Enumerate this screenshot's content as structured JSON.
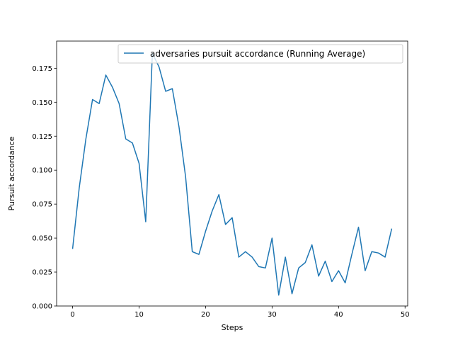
{
  "chart_data": {
    "type": "line",
    "title": "",
    "xlabel": "Steps",
    "ylabel": "Pursuit accordance",
    "xlim": [
      -2.4,
      50.4
    ],
    "ylim": [
      0.0,
      0.195
    ],
    "x_ticks": [
      0,
      10,
      20,
      30,
      40,
      50
    ],
    "y_ticks": [
      0.0,
      0.025,
      0.05,
      0.075,
      0.1,
      0.125,
      0.15,
      0.175
    ],
    "y_tick_labels": [
      "0.000",
      "0.025",
      "0.050",
      "0.075",
      "0.100",
      "0.125",
      "0.150",
      "0.175"
    ],
    "grid": false,
    "legend": "top-right",
    "series": [
      {
        "name": "adversaries pursuit accordance (Running Average)",
        "color": "#1f77b4",
        "x": [
          0,
          1,
          2,
          3,
          4,
          5,
          6,
          7,
          8,
          9,
          10,
          11,
          12,
          13,
          14,
          15,
          16,
          17,
          18,
          19,
          20,
          21,
          22,
          23,
          24,
          25,
          26,
          27,
          28,
          29,
          30,
          31,
          32,
          33,
          34,
          35,
          36,
          37,
          38,
          39,
          40,
          41,
          42,
          43,
          44,
          45,
          46,
          47,
          48
        ],
        "values": [
          0.042,
          0.087,
          0.123,
          0.152,
          0.149,
          0.17,
          0.161,
          0.149,
          0.123,
          0.12,
          0.105,
          0.062,
          0.186,
          0.176,
          0.158,
          0.16,
          0.132,
          0.095,
          0.04,
          0.038,
          0.055,
          0.07,
          0.082,
          0.06,
          0.065,
          0.036,
          0.04,
          0.036,
          0.029,
          0.028,
          0.05,
          0.008,
          0.036,
          0.009,
          0.028,
          0.032,
          0.045,
          0.022,
          0.033,
          0.018,
          0.026,
          0.017,
          0.038,
          0.058,
          0.026,
          0.04,
          0.039,
          0.036,
          0.057
        ]
      }
    ]
  }
}
